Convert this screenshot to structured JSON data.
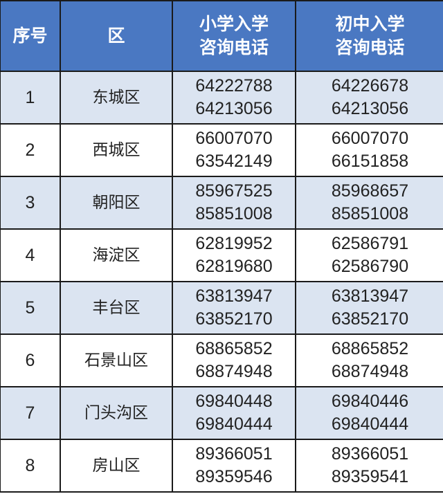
{
  "header_color": "#4a78c2",
  "alt_row_color": "#dbe4f1",
  "headers": [
    "序号",
    "区",
    [
      "小学入学",
      "咨询电话"
    ],
    [
      "初中入学",
      "咨询电话"
    ]
  ],
  "rows": [
    {
      "no": "1",
      "district": "东城区",
      "primary": [
        "64222788",
        "64213056"
      ],
      "middle": [
        "64226678",
        "64213056"
      ]
    },
    {
      "no": "2",
      "district": "西城区",
      "primary": [
        "66007070",
        "63542149"
      ],
      "middle": [
        "66007070",
        "66151858"
      ]
    },
    {
      "no": "3",
      "district": "朝阳区",
      "primary": [
        "85967525",
        "85851008"
      ],
      "middle": [
        "85968657",
        "85851008"
      ]
    },
    {
      "no": "4",
      "district": "海淀区",
      "primary": [
        "62819952",
        "62819680"
      ],
      "middle": [
        "62586791",
        "62586790"
      ]
    },
    {
      "no": "5",
      "district": "丰台区",
      "primary": [
        "63813947",
        "63852170"
      ],
      "middle": [
        "63813947",
        "63852170"
      ]
    },
    {
      "no": "6",
      "district": "石景山区",
      "primary": [
        "68865852",
        "68874948"
      ],
      "middle": [
        "68865852",
        "68874948"
      ]
    },
    {
      "no": "7",
      "district": "门头沟区",
      "primary": [
        "69840448",
        "69840444"
      ],
      "middle": [
        "69840446",
        "69840444"
      ]
    },
    {
      "no": "8",
      "district": "房山区",
      "primary": [
        "89366051",
        "89359546"
      ],
      "middle": [
        "89366051",
        "89359541"
      ]
    }
  ]
}
